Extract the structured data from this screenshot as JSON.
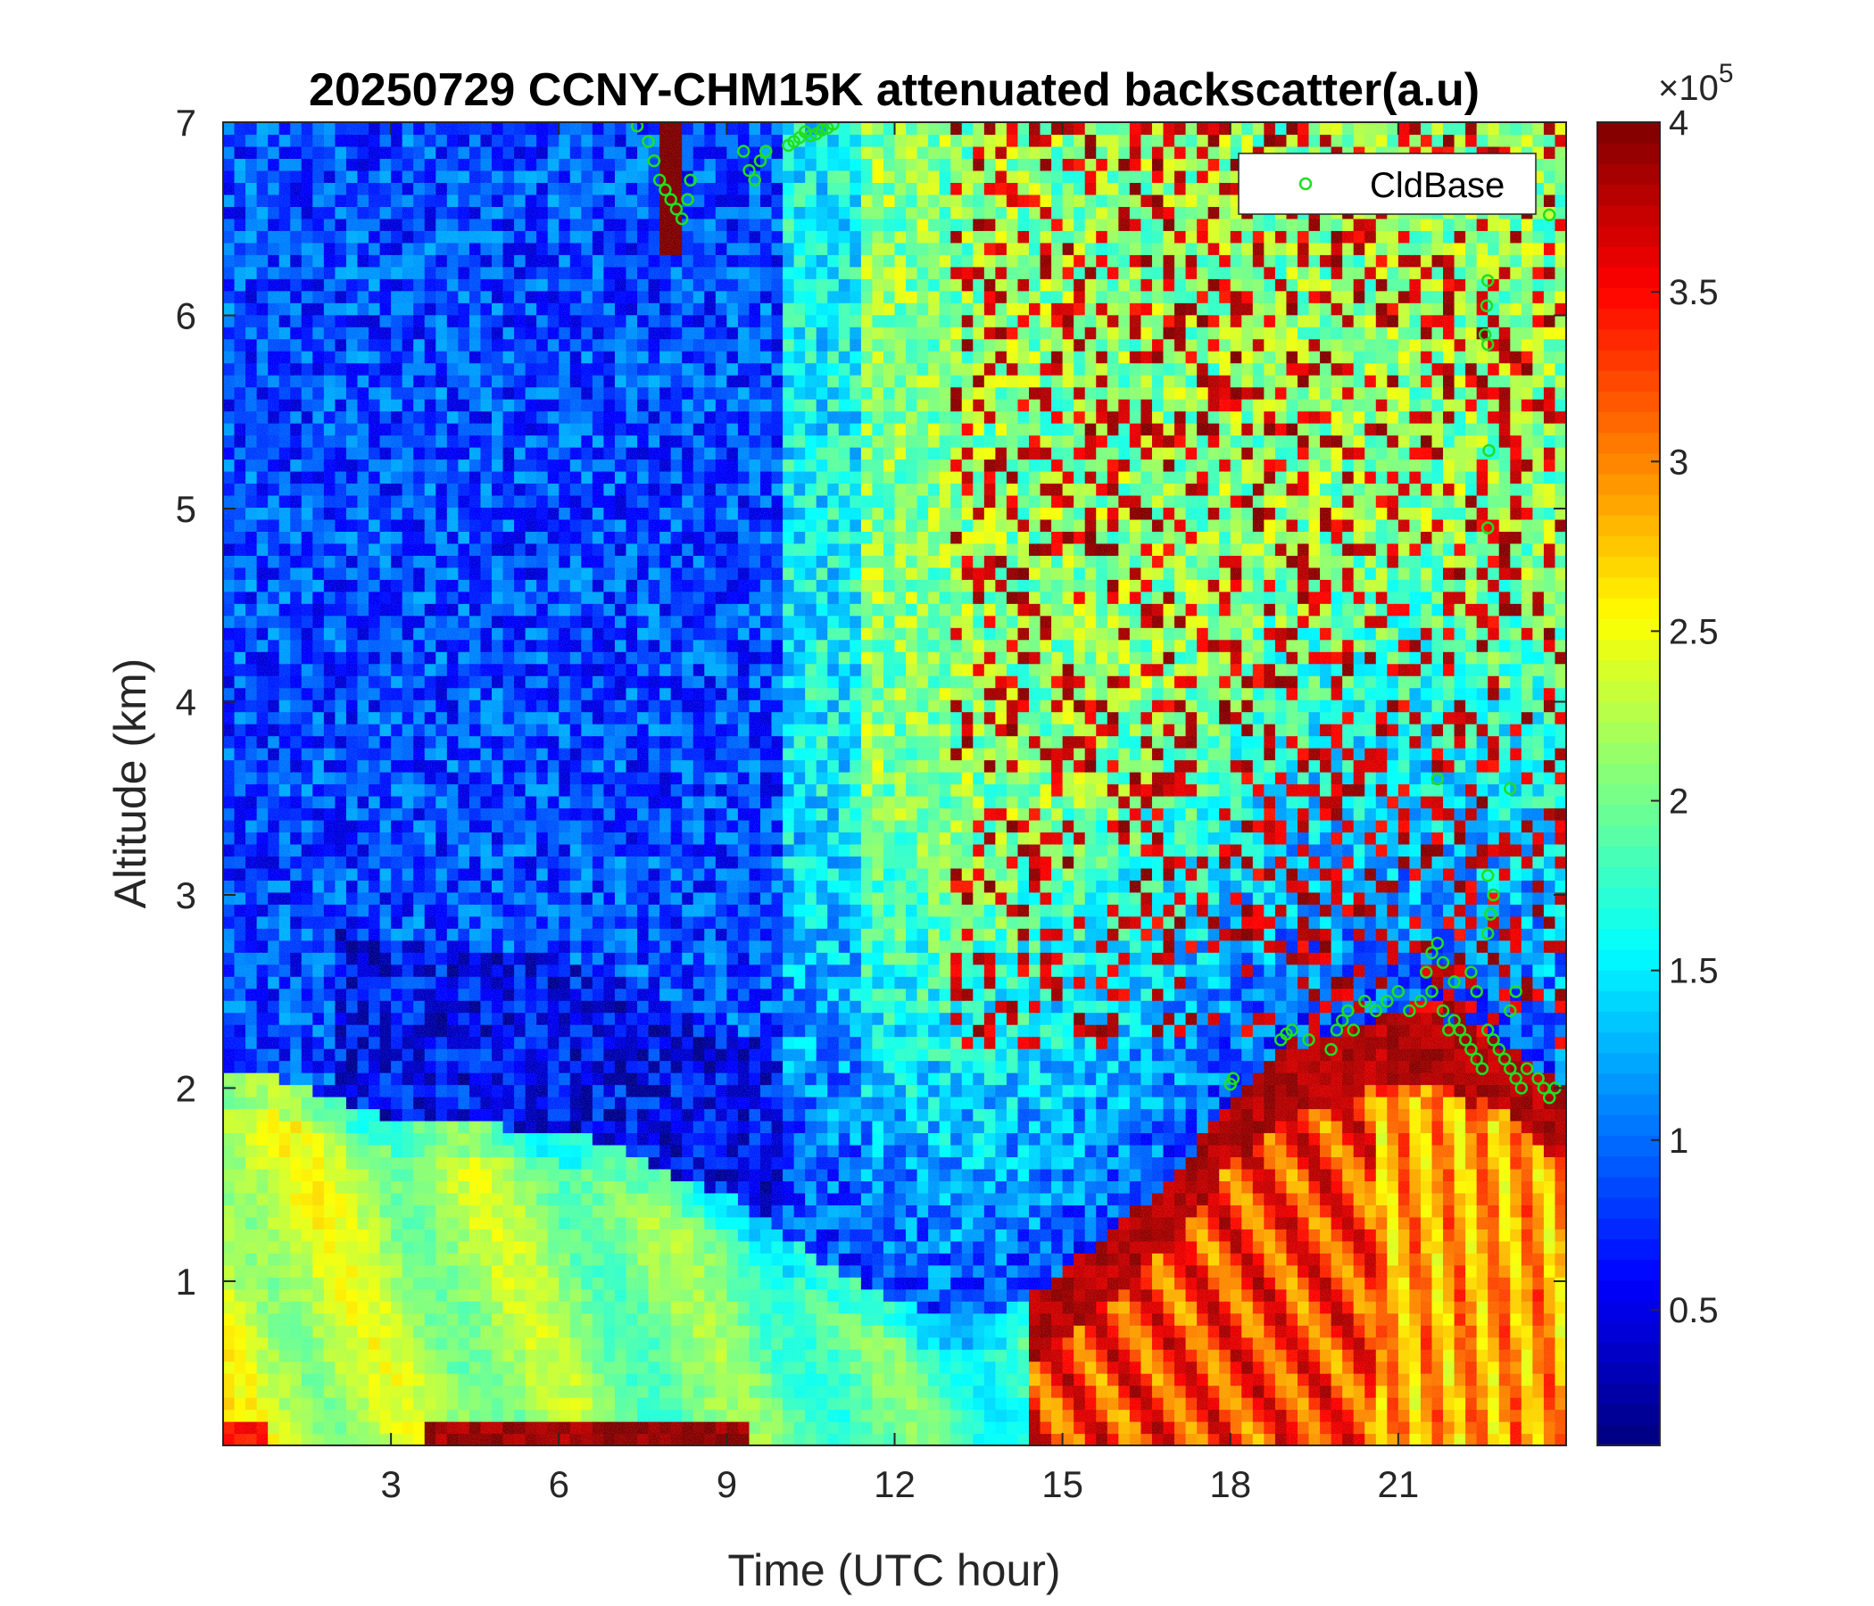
{
  "chart_data": {
    "type": "heatmap",
    "title": "20250729 CCNY-CHM15K attenuated backscatter(a.u)",
    "xlabel": "Time (UTC hour)",
    "ylabel": "Altitude (km)",
    "xlim": [
      0,
      24
    ],
    "ylim": [
      0.15,
      7
    ],
    "xticks": [
      3,
      6,
      9,
      12,
      15,
      18,
      21
    ],
    "xtick_labels": [
      "3",
      "6",
      "9",
      "12",
      "15",
      "18",
      "21"
    ],
    "yticks": [
      1,
      2,
      3,
      4,
      5,
      6,
      7
    ],
    "ytick_labels": [
      "1",
      "2",
      "3",
      "4",
      "5",
      "6",
      "7"
    ],
    "colorbar": {
      "colormap": "jet",
      "clim": [
        0.1,
        4
      ],
      "ticks": [
        0.5,
        1,
        1.5,
        2,
        2.5,
        3,
        3.5,
        4
      ],
      "tick_labels": [
        "0.5",
        "1",
        "1.5",
        "2",
        "2.5",
        "3",
        "3.5",
        "4"
      ],
      "exponent_prefix": "×10",
      "exponent_power": "5"
    },
    "boundary_layer_top_km": {
      "x": [
        0,
        1,
        2,
        3,
        4,
        5,
        6,
        7,
        8,
        9,
        10,
        11,
        12,
        13,
        14,
        15,
        16,
        17,
        18,
        19,
        20,
        21,
        22,
        23,
        24
      ],
      "y": [
        2.1,
        2.05,
        1.95,
        1.85,
        1.82,
        1.8,
        1.8,
        1.7,
        1.55,
        1.45,
        1.25,
        1.05,
        0.9,
        0.8,
        0.85,
        1.05,
        1.3,
        1.55,
        1.95,
        2.2,
        2.3,
        2.4,
        2.35,
        2.2,
        2.0
      ]
    },
    "series": [
      {
        "name": "CldBase",
        "type": "scatter",
        "marker": "circle",
        "color": "#22dd22",
        "x": [
          7.4,
          7.6,
          7.7,
          7.8,
          7.9,
          8.0,
          8.1,
          8.2,
          8.3,
          8.35,
          9.3,
          9.4,
          9.5,
          9.6,
          9.7,
          10.1,
          10.2,
          10.3,
          10.4,
          10.5,
          10.6,
          10.7,
          10.8,
          10.9,
          18.0,
          18.05,
          18.9,
          19.0,
          19.1,
          19.4,
          19.8,
          19.9,
          20.0,
          20.1,
          20.2,
          20.4,
          20.6,
          20.8,
          21.0,
          21.2,
          21.4,
          21.6,
          21.8,
          21.9,
          22.0,
          22.1,
          22.2,
          22.3,
          22.4,
          22.5,
          22.6,
          22.7,
          22.8,
          22.9,
          23.0,
          23.1,
          23.2,
          23.3,
          23.5,
          23.6,
          23.7,
          23.8,
          21.5,
          21.6,
          21.7,
          21.8,
          22.0,
          22.3,
          22.4,
          22.6,
          22.7,
          23.0,
          23.1,
          22.6,
          22.58,
          22.55,
          22.6,
          22.62,
          22.6,
          22.6,
          22.65,
          23.7,
          21.7,
          23.0
        ],
        "y": [
          6.98,
          6.9,
          6.8,
          6.7,
          6.65,
          6.6,
          6.55,
          6.5,
          6.6,
          6.7,
          6.85,
          6.75,
          6.7,
          6.8,
          6.85,
          6.88,
          6.9,
          6.92,
          6.95,
          6.93,
          6.94,
          6.96,
          6.97,
          6.99,
          2.02,
          2.05,
          2.25,
          2.28,
          2.3,
          2.25,
          2.2,
          2.3,
          2.35,
          2.4,
          2.3,
          2.45,
          2.4,
          2.45,
          2.5,
          2.4,
          2.45,
          2.5,
          2.4,
          2.3,
          2.35,
          2.3,
          2.25,
          2.2,
          2.15,
          2.1,
          2.3,
          2.25,
          2.2,
          2.15,
          2.1,
          2.05,
          2.0,
          2.1,
          2.05,
          2.0,
          1.95,
          2.0,
          2.6,
          2.7,
          2.75,
          2.65,
          2.55,
          2.6,
          2.5,
          2.8,
          3.0,
          2.4,
          2.5,
          6.18,
          6.05,
          5.9,
          5.85,
          5.3,
          4.9,
          3.1,
          2.9,
          6.52,
          3.6,
          3.55
        ]
      }
    ],
    "legend": {
      "placement": "top-right",
      "entries": [
        "CldBase"
      ]
    }
  }
}
